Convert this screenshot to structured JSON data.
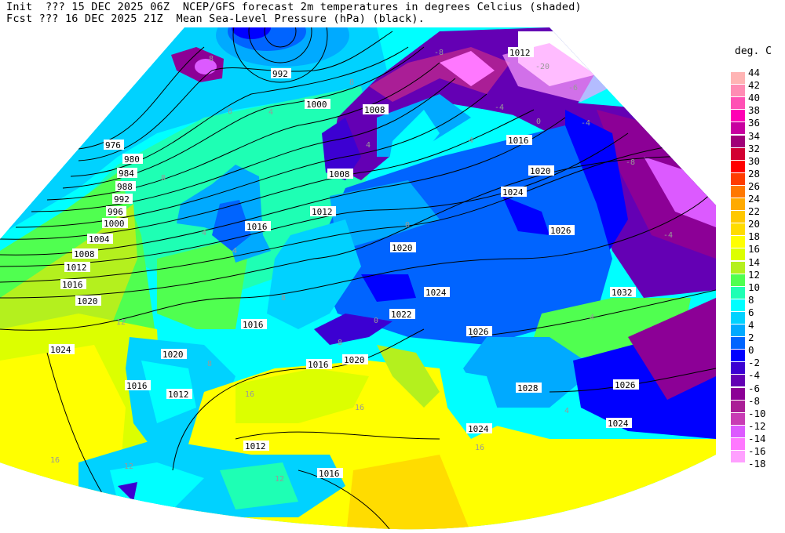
{
  "header": {
    "line1_left": "Init  ??? 15 DEC 2025 06Z",
    "line1_right": "NCEP/GFS forecast 2m temperatures in degrees Celcius (shaded)",
    "line2_left": "Fcst ??? 16 DEC 2025 21Z",
    "line2_right": "Mean Sea-Level Pressure (hPa) (black)."
  },
  "legend": {
    "unit": "deg. C",
    "labels": [
      "44",
      "42",
      "40",
      "38",
      "36",
      "34",
      "32",
      "30",
      "28",
      "26",
      "24",
      "22",
      "20",
      "18",
      "16",
      "14",
      "12",
      "10",
      "8",
      "6",
      "4",
      "2",
      "0",
      "-2",
      "-4",
      "-6",
      "-8",
      "-10",
      "-12",
      "-14",
      "-16",
      "-18"
    ],
    "colors": [
      "#ffb4b4",
      "#ff8cb4",
      "#ff50b4",
      "#ff00b4",
      "#c800a0",
      "#a00078",
      "#d20032",
      "#ff0000",
      "#ff3c00",
      "#ff7800",
      "#ffaa00",
      "#ffc800",
      "#ffdc00",
      "#ffff00",
      "#dcff00",
      "#b4f01e",
      "#50ff50",
      "#1effb4",
      "#00ffff",
      "#00d2ff",
      "#00aaff",
      "#0064ff",
      "#0000ff",
      "#3c00d2",
      "#6400b4",
      "#8c0096",
      "#aa1e96",
      "#c83cb4",
      "#dc5aff",
      "#ff78ff",
      "#ffa0ff"
    ]
  },
  "isobars": {
    "labels": [
      "976",
      "980",
      "984",
      "988",
      "992",
      "996",
      "1000",
      "1004",
      "1008",
      "1012",
      "1016",
      "1020",
      "1024",
      "992",
      "1000",
      "1008",
      "1008",
      "1012",
      "1016",
      "1016",
      "1020",
      "1024",
      "1026",
      "1020",
      "1012",
      "1024",
      "1032",
      "1022",
      "1016",
      "1026",
      "1020",
      "1016",
      "1020",
      "1016",
      "1012",
      "1028",
      "1026",
      "1024",
      "1024",
      "1012",
      "1016"
    ]
  },
  "temperature_labels": [
    "8",
    "4",
    "8",
    "8",
    "4",
    "4",
    "8",
    "4",
    "-8",
    "-4",
    "-20",
    "-6",
    "-4",
    "-8",
    "0",
    "4",
    "0",
    "-4",
    "8",
    "12",
    "16",
    "16",
    "16",
    "12",
    "12",
    "8",
    "4",
    "8",
    "16",
    "-4",
    "0"
  ]
}
